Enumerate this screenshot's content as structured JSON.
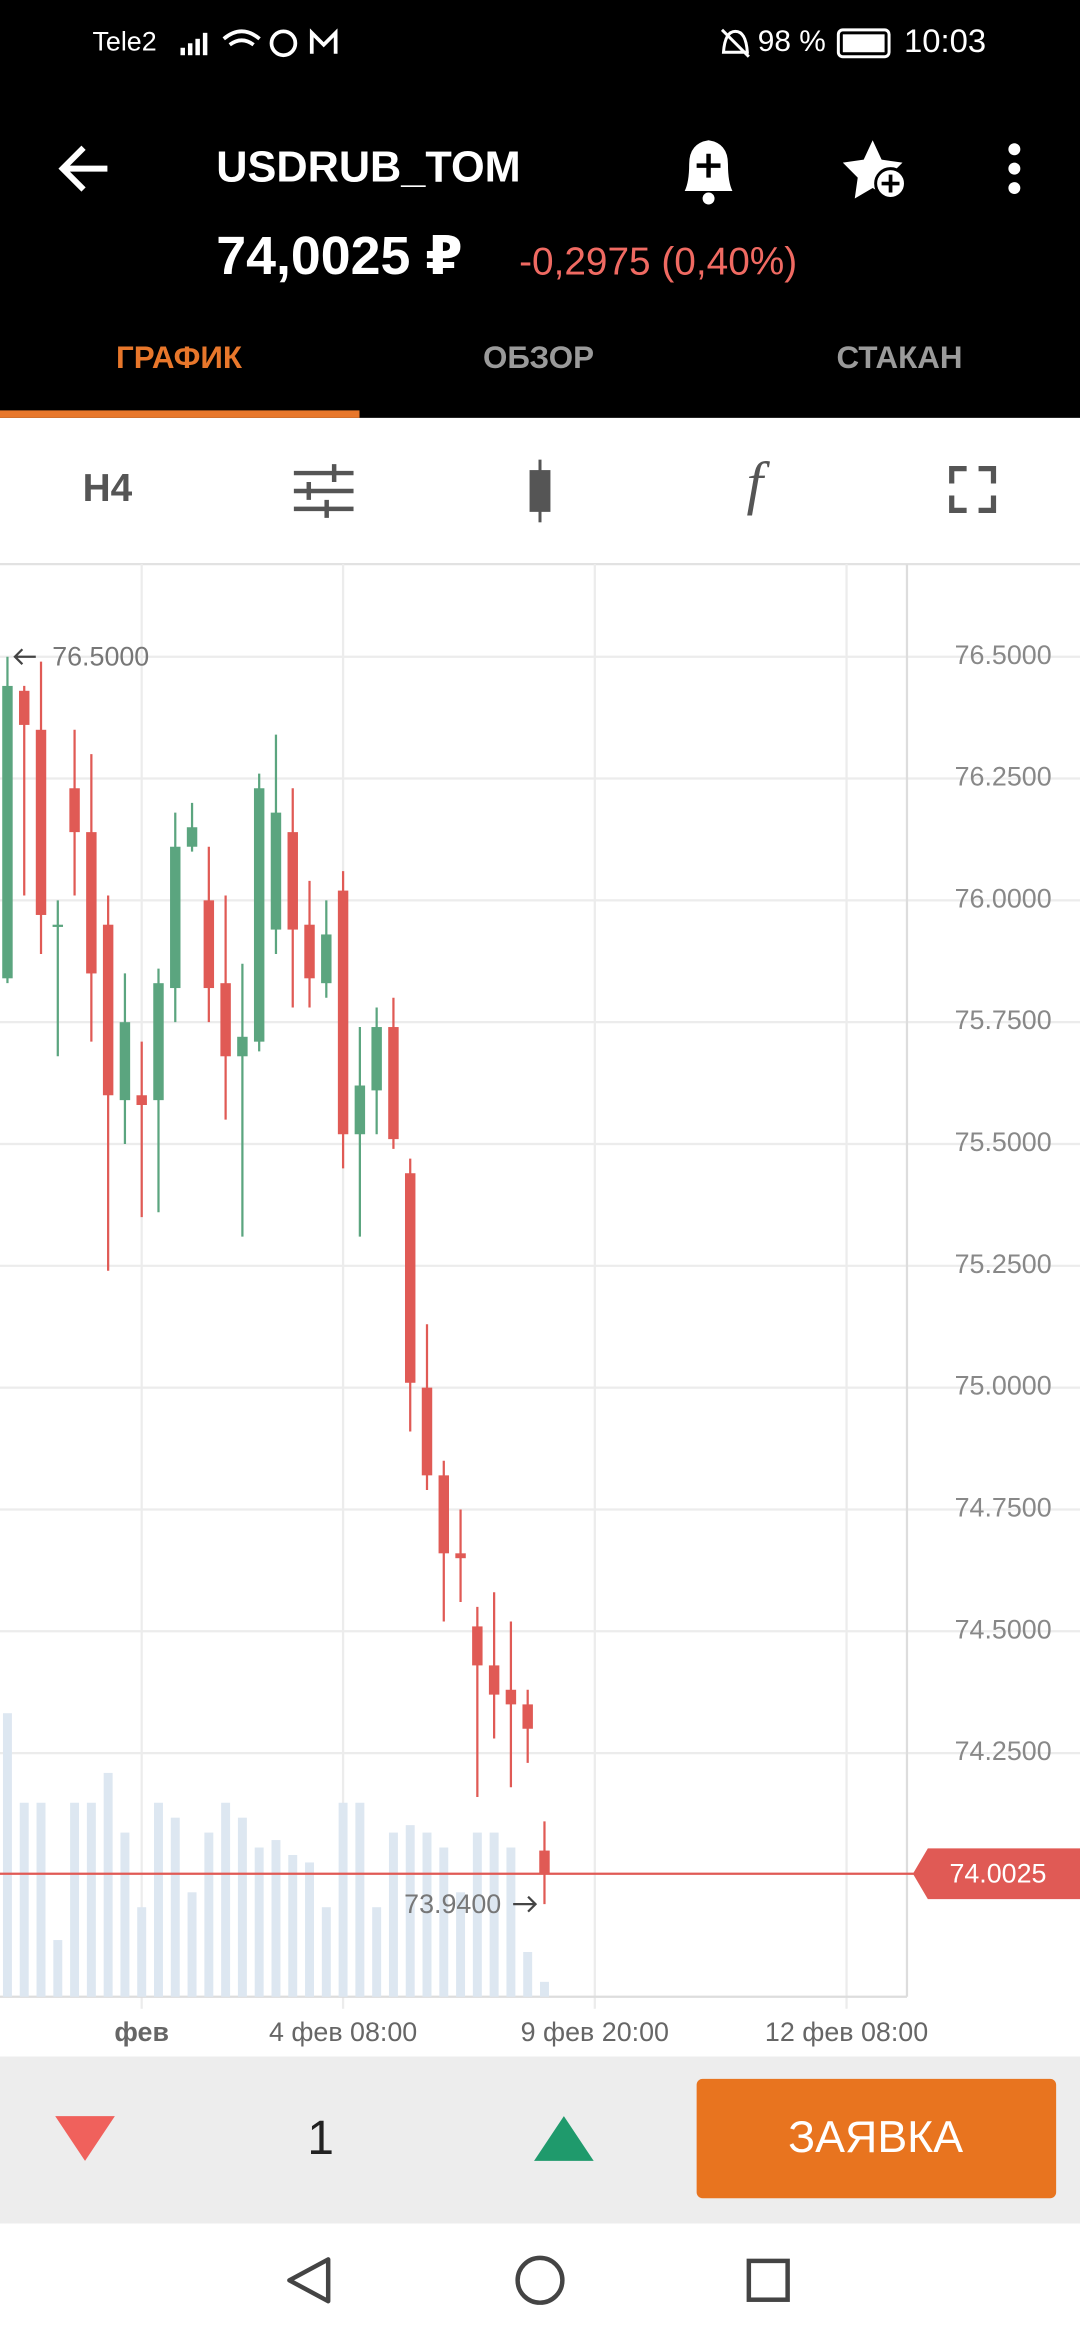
{
  "status_bar": {
    "carrier": "Tele2",
    "battery": "98 %",
    "time": "10:03"
  },
  "header": {
    "title": "USDRUB_TOM",
    "price": "74,0025 ₽",
    "change": "-0,2975 (0,40%)"
  },
  "tabs": [
    "ГРАФИК",
    "ОБЗОР",
    "СТАКАН"
  ],
  "toolbar": {
    "interval": "H4",
    "function": "f"
  },
  "chart": {
    "type": "candlestick",
    "x": [
      0,
      1,
      2,
      3,
      4,
      5,
      6,
      7,
      8,
      9,
      10,
      11,
      12,
      13,
      14,
      15,
      16,
      17,
      18,
      19,
      20,
      21,
      22,
      23,
      24,
      25,
      26,
      27,
      28,
      29,
      30,
      31,
      32
    ],
    "open": [
      75.84,
      76.43,
      76.35,
      75.95,
      76.23,
      76.14,
      75.95,
      75.59,
      75.6,
      75.59,
      75.82,
      76.11,
      76.0,
      75.83,
      75.68,
      75.71,
      75.94,
      76.14,
      75.95,
      75.83,
      76.02,
      75.52,
      75.61,
      75.74,
      75.44,
      75.0,
      74.82,
      74.66,
      74.51,
      74.43,
      74.38,
      74.35,
      74.05
    ],
    "high": [
      76.5,
      76.44,
      76.49,
      76.0,
      76.35,
      76.3,
      76.01,
      75.85,
      75.71,
      75.86,
      76.18,
      76.2,
      76.11,
      76.01,
      75.87,
      76.26,
      76.34,
      76.23,
      76.04,
      76.0,
      76.06,
      75.74,
      75.78,
      75.8,
      75.47,
      75.13,
      74.85,
      74.75,
      74.55,
      74.58,
      74.52,
      74.38,
      74.11
    ],
    "low": [
      75.83,
      76.01,
      75.89,
      75.68,
      76.01,
      75.71,
      75.24,
      75.5,
      75.35,
      75.36,
      75.75,
      76.1,
      75.75,
      75.55,
      75.31,
      75.69,
      75.89,
      75.78,
      75.78,
      75.8,
      75.45,
      75.31,
      75.52,
      75.49,
      74.91,
      74.79,
      74.52,
      74.56,
      74.16,
      74.28,
      74.18,
      74.23,
      73.94
    ],
    "close": [
      76.44,
      76.36,
      75.97,
      75.95,
      76.14,
      75.85,
      75.6,
      75.75,
      75.58,
      75.83,
      76.11,
      76.15,
      75.82,
      75.68,
      75.72,
      76.23,
      76.18,
      75.94,
      75.84,
      75.93,
      75.52,
      75.62,
      75.74,
      75.51,
      75.01,
      74.82,
      74.66,
      74.65,
      74.43,
      74.37,
      74.35,
      74.3,
      74.0025
    ],
    "volume": [
      190,
      130,
      130,
      38,
      130,
      130,
      150,
      110,
      60,
      130,
      120,
      70,
      110,
      130,
      120,
      100,
      105,
      95,
      90,
      60,
      130,
      130,
      60,
      110,
      115,
      110,
      100,
      70,
      110,
      110,
      100,
      30,
      10
    ],
    "up_color": "#5ba57f",
    "down_color": "#e05a55",
    "volume_color": "#dde7f1",
    "xlim": [
      -0.444,
      53.6
    ],
    "xticks": [
      {
        "value": 8,
        "label": "фев"
      },
      {
        "value": 20,
        "label": "4 фев 08:00"
      },
      {
        "value": 35,
        "label": "9 фев 20:00"
      },
      {
        "value": 50,
        "label": "12 фев 08:00"
      }
    ],
    "ylim": [
      73.75,
      76.69
    ],
    "yticks": [
      {
        "value": 74.25,
        "label": "74.2500"
      },
      {
        "value": 74.5,
        "label": "74.5000"
      },
      {
        "value": 74.75,
        "label": "74.7500"
      },
      {
        "value": 75,
        "label": "75.0000"
      },
      {
        "value": 75.25,
        "label": "75.2500"
      },
      {
        "value": 75.5,
        "label": "75.5000"
      },
      {
        "value": 75.75,
        "label": "75.7500"
      },
      {
        "value": 76,
        "label": "76.0000"
      },
      {
        "value": 76.25,
        "label": "76.2500"
      },
      {
        "value": 76.5,
        "label": "76.5000"
      }
    ],
    "grid": true,
    "max_marker": {
      "value": 76.5,
      "label": "76.5000"
    },
    "min_marker": {
      "value": 73.94,
      "label": "73.9400"
    },
    "last_price": 74.0025
  },
  "order_bar": {
    "quantity": "1",
    "button": "ЗАЯВКА"
  }
}
